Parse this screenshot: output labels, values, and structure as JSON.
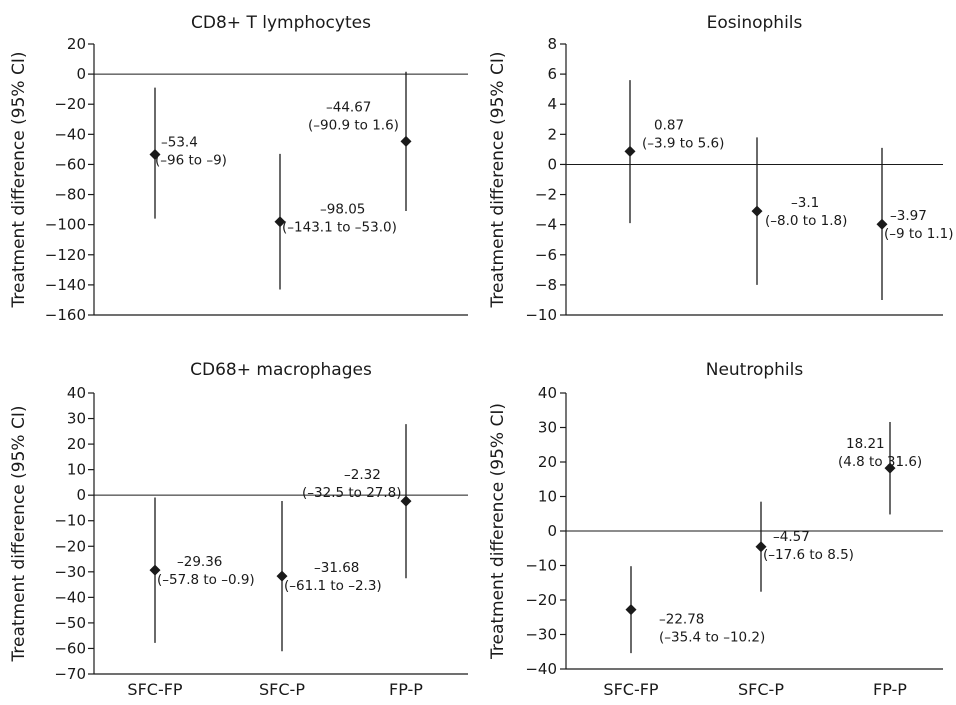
{
  "figure": {
    "categories": [
      "SFC-FP",
      "SFC-P",
      "FP-P"
    ],
    "ylabel": "Treatment difference (95% CI)",
    "colors": {
      "ink": "#1a1a1a",
      "background": "#ffffff"
    }
  },
  "chart_data": [
    {
      "type": "scatter",
      "title": "CD8+ T lymphocytes",
      "ylabel": "Treatment difference (95% CI)",
      "categories": [
        "SFC-FP",
        "SFC-P",
        "FP-P"
      ],
      "ylim": [
        -160,
        20
      ],
      "yticks": [
        20,
        0,
        -20,
        -40,
        -60,
        -80,
        -100,
        -120,
        -140,
        -160
      ],
      "reference_line": 0,
      "points": [
        {
          "category": "SFC-FP",
          "estimate": -53.4,
          "lower": -96,
          "upper": -9,
          "label": "–53.4",
          "ci_label": "(–96 to –9)"
        },
        {
          "category": "SFC-P",
          "estimate": -98.05,
          "lower": -143.1,
          "upper": -53.0,
          "label": "–98.05",
          "ci_label": "(–143.1 to –53.0)"
        },
        {
          "category": "FP-P",
          "estimate": -44.67,
          "lower": -90.9,
          "upper": 1.6,
          "label": "–44.67",
          "ci_label": "(–90.9 to 1.6)"
        }
      ]
    },
    {
      "type": "scatter",
      "title": "Eosinophils",
      "ylabel": "Treatment difference (95% CI)",
      "categories": [
        "SFC-FP",
        "SFC-P",
        "FP-P"
      ],
      "ylim": [
        -10,
        8
      ],
      "yticks": [
        8,
        6,
        4,
        2,
        0,
        -2,
        -4,
        -6,
        -8,
        -10
      ],
      "reference_line": 0,
      "points": [
        {
          "category": "SFC-FP",
          "estimate": 0.87,
          "lower": -3.9,
          "upper": 5.6,
          "label": "0.87",
          "ci_label": "(–3.9 to 5.6)"
        },
        {
          "category": "SFC-P",
          "estimate": -3.1,
          "lower": -8.0,
          "upper": 1.8,
          "label": "–3.1",
          "ci_label": "(–8.0 to 1.8)"
        },
        {
          "category": "FP-P",
          "estimate": -3.97,
          "lower": -9,
          "upper": 1.1,
          "label": "–3.97",
          "ci_label": "(–9 to 1.1)"
        }
      ]
    },
    {
      "type": "scatter",
      "title": "CD68+ macrophages",
      "ylabel": "Treatment difference (95% CI)",
      "categories": [
        "SFC-FP",
        "SFC-P",
        "FP-P"
      ],
      "ylim": [
        -70,
        40
      ],
      "yticks": [
        40,
        30,
        20,
        10,
        0,
        -10,
        -20,
        -30,
        -40,
        -50,
        -60,
        -70
      ],
      "reference_line": 0,
      "points": [
        {
          "category": "SFC-FP",
          "estimate": -29.36,
          "lower": -57.8,
          "upper": -0.9,
          "label": "–29.36",
          "ci_label": "(–57.8 to –0.9)"
        },
        {
          "category": "SFC-P",
          "estimate": -31.68,
          "lower": -61.1,
          "upper": -2.3,
          "label": "–31.68",
          "ci_label": "(–61.1 to –2.3)"
        },
        {
          "category": "FP-P",
          "estimate": -2.32,
          "lower": -32.5,
          "upper": 27.8,
          "label": "–2.32",
          "ci_label": "(–32.5 to 27.8)"
        }
      ]
    },
    {
      "type": "scatter",
      "title": "Neutrophils",
      "ylabel": "Treatment difference (95% CI)",
      "categories": [
        "SFC-FP",
        "SFC-P",
        "FP-P"
      ],
      "ylim": [
        -40,
        40
      ],
      "yticks": [
        40,
        30,
        20,
        10,
        0,
        -10,
        -20,
        -30,
        -40
      ],
      "reference_line": 0,
      "points": [
        {
          "category": "SFC-FP",
          "estimate": -22.78,
          "lower": -35.4,
          "upper": -10.2,
          "label": "–22.78",
          "ci_label": "(–35.4 to –10.2)"
        },
        {
          "category": "SFC-P",
          "estimate": -4.57,
          "lower": -17.6,
          "upper": 8.5,
          "label": "–4.57",
          "ci_label": "(–17.6 to 8.5)"
        },
        {
          "category": "FP-P",
          "estimate": 18.21,
          "lower": 4.8,
          "upper": 31.6,
          "label": "18.21",
          "ci_label": "(4.8 to 31.6)"
        }
      ]
    }
  ]
}
